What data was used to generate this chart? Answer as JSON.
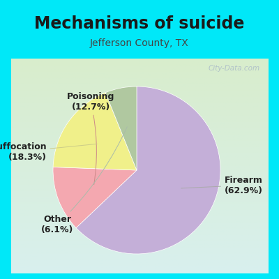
{
  "title": "Mechanisms of suicide",
  "subtitle": "Jefferson County, TX",
  "slices": [
    {
      "label": "Firearm",
      "pct": 62.9,
      "color": "#c4afd8"
    },
    {
      "label": "Poisoning",
      "pct": 12.7,
      "color": "#f4a8b0"
    },
    {
      "label": "Suffocation",
      "pct": 18.3,
      "color": "#f0f08a"
    },
    {
      "label": "Other",
      "pct": 6.1,
      "color": "#b0c8a0"
    }
  ],
  "bg_outer": "#00e8f8",
  "bg_inner_top": "#d8f0ee",
  "bg_inner_bot": "#d8edcc",
  "watermark": "City-Data.com",
  "title_fontsize": 17,
  "subtitle_fontsize": 10,
  "label_fontsize": 9,
  "title_color": "#1a1a1a",
  "subtitle_color": "#444444",
  "label_color": "#222222"
}
